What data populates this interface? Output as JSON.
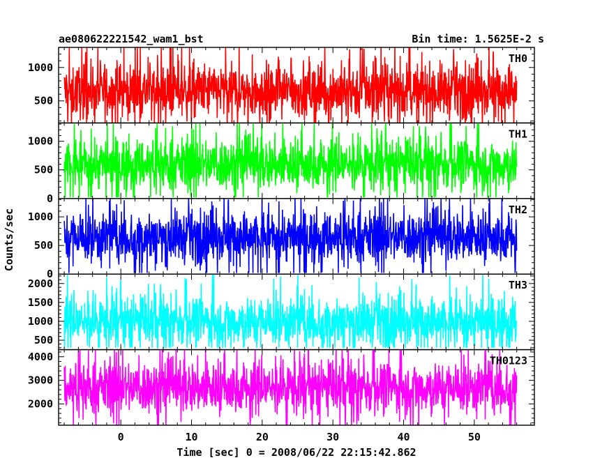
{
  "chart_data": {
    "type": "line",
    "title_left": "ae080622221542_wam1_bst",
    "title_right": "Bin time: 1.5625E-2 s",
    "xlabel": "Time [sec] 0 = 2008/06/22 22:15:42.862",
    "ylabel": "Counts/sec",
    "xlim": [
      -8.8,
      58.5
    ],
    "data_x_range": [
      -8,
      56
    ],
    "x_ticks": [
      0,
      10,
      20,
      30,
      40,
      50
    ],
    "x_minor_step": 2,
    "panels": [
      {
        "name": "TH0",
        "color": "#ff0000",
        "ylim": [
          170,
          1300
        ],
        "y_ticks": [
          500,
          1000
        ],
        "y_minor_step": 100,
        "mean": 650,
        "min_low": 130,
        "max_high": 1300
      },
      {
        "name": "TH1",
        "color": "#00ff00",
        "ylim": [
          0,
          1320
        ],
        "y_ticks": [
          0,
          500,
          1000
        ],
        "y_minor_step": 100,
        "mean": 600,
        "min_low": 20,
        "max_high": 1320
      },
      {
        "name": "TH2",
        "color": "#0000ff",
        "ylim": [
          0,
          1320
        ],
        "y_ticks": [
          0,
          500,
          1000
        ],
        "y_minor_step": 100,
        "mean": 650,
        "min_low": 20,
        "max_high": 1320
      },
      {
        "name": "TH3",
        "color": "#00ffff",
        "ylim": [
          250,
          2250
        ],
        "y_ticks": [
          500,
          1000,
          1500,
          2000
        ],
        "y_minor_step": 100,
        "mean": 1000,
        "min_low": 300,
        "max_high": 2250
      },
      {
        "name": "TH0123",
        "color": "#ff00ff",
        "ylim": [
          1100,
          4300
        ],
        "y_ticks": [
          2000,
          3000,
          4000
        ],
        "y_minor_step": 200,
        "mean": 2700,
        "min_low": 1100,
        "max_high": 4300
      }
    ]
  }
}
